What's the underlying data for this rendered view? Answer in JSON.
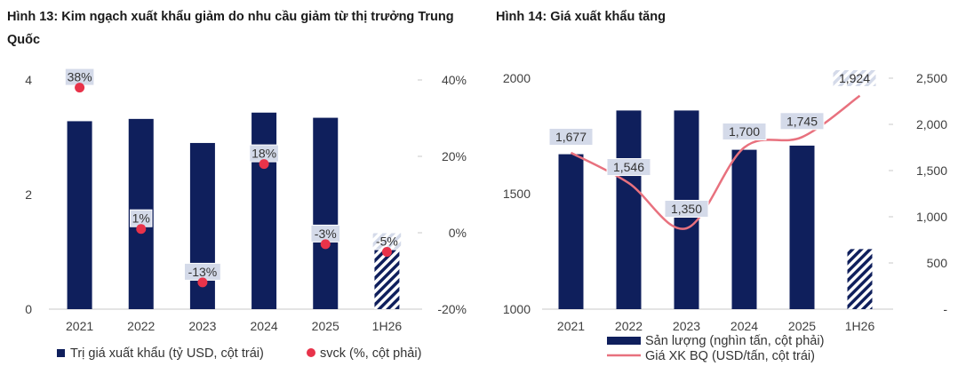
{
  "colors": {
    "bar": "#0f1f5c",
    "dot": "#e8334a",
    "line": "#e8717e",
    "label_box": "#d4dae9",
    "axis_text": "#404040"
  },
  "charts": [
    {
      "id": "fig13",
      "title": "Hình 13: Kim ngạch xuất khẩu giảm do nhu cầu giảm từ thị trưởng Trung Quốc",
      "chart_data": {
        "type": "bar",
        "categories": [
          "2021",
          "2022",
          "2023",
          "2024",
          "2025",
          "1H26"
        ],
        "y_left": {
          "range": [
            0,
            4
          ],
          "ticks": [
            "0",
            "2",
            "4"
          ]
        },
        "y_right": {
          "range": [
            -20,
            40
          ],
          "ticks": [
            "-20%",
            "0%",
            "20%",
            "40%"
          ]
        },
        "series": [
          {
            "name": "Trị giá xuất khẩu (tỷ USD, cột trái)",
            "kind": "bar",
            "axis": "left",
            "values": [
              3.28,
              3.32,
              2.9,
              3.43,
              3.34,
              1.22
            ],
            "hatched_last": true
          },
          {
            "name": "svck (%, cột phải)",
            "kind": "dot",
            "axis": "right",
            "values": [
              38,
              1,
              -13,
              18,
              -3,
              -5
            ],
            "labels": [
              "38%",
              "1%",
              "-13%",
              "18%",
              "-3%",
              "-5%"
            ]
          }
        ],
        "legend_position": "bottom"
      }
    },
    {
      "id": "fig14",
      "title": "Hình 14: Giá xuất khẩu tăng",
      "chart_data": {
        "type": "bar",
        "categories": [
          "2021",
          "2022",
          "2023",
          "2024",
          "2025",
          "1H26"
        ],
        "y_left": {
          "range": [
            1000,
            2000
          ],
          "ticks": [
            "1000",
            "1500",
            "2000"
          ]
        },
        "y_right": {
          "range": [
            0,
            2500
          ],
          "ticks": [
            "-",
            "500",
            "1,000",
            "1,500",
            "2,000",
            "2,500"
          ]
        },
        "series": [
          {
            "name": "Sản lượng (nghìn tấn, cột phải)",
            "kind": "bar",
            "axis": "right",
            "values": [
              1677,
              2150,
              2150,
              1725,
              1770,
              650
            ],
            "hatched_last": true
          },
          {
            "name": "Giá XK BQ (USD/tấn, cột trái)",
            "kind": "line",
            "axis": "left",
            "values": [
              1677,
              1546,
              1350,
              1700,
              1745,
              1924
            ],
            "labels": [
              "1,677",
              "1,546",
              "1,350",
              "1,700",
              "1,745",
              "1,924"
            ]
          }
        ],
        "legend_position": "bottom"
      }
    }
  ]
}
